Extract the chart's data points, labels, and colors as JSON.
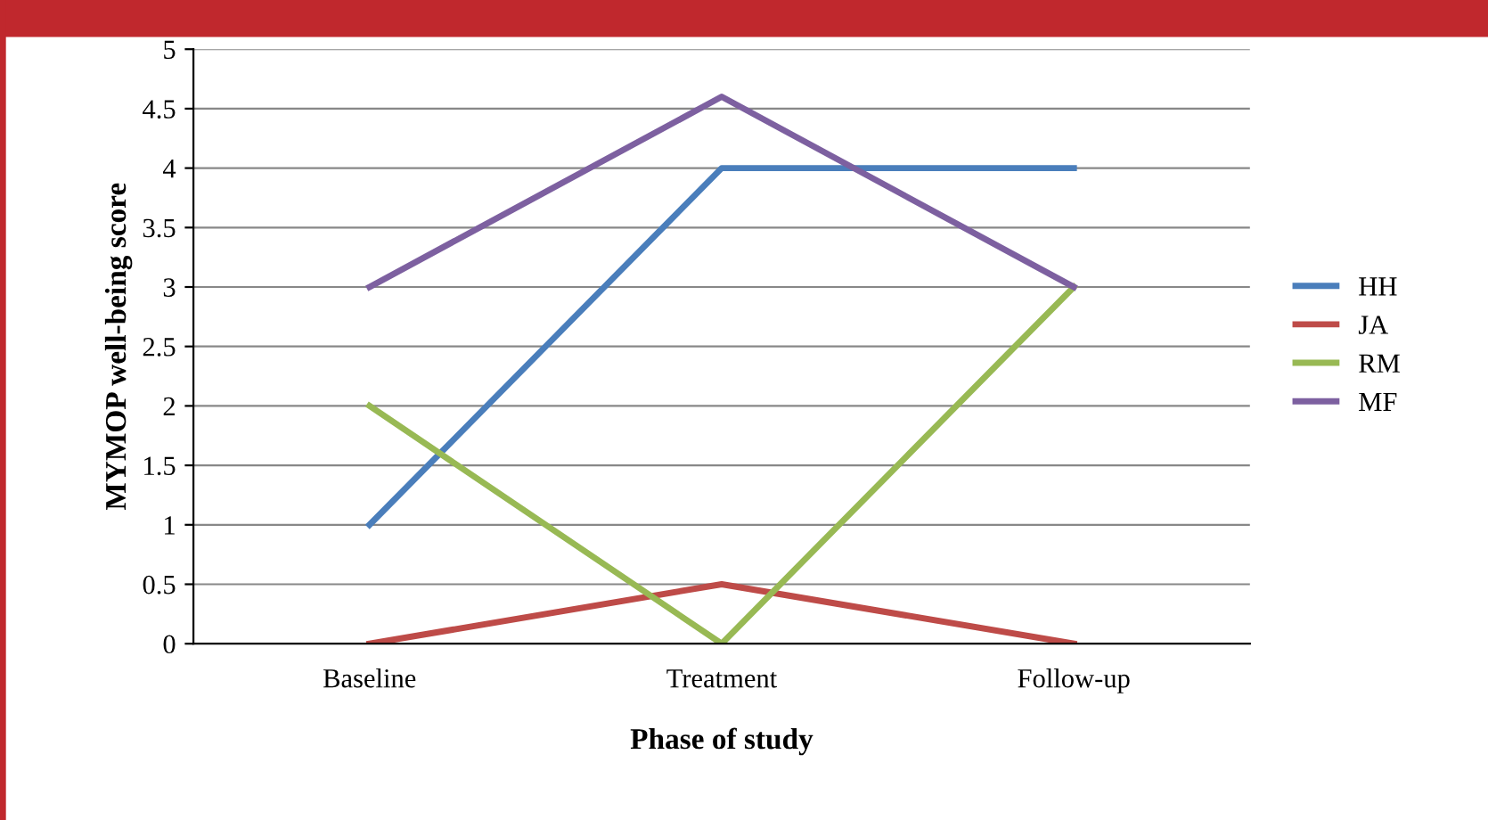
{
  "chart_data": {
    "type": "line",
    "xlabel": "Phase of study",
    "ylabel": "MYMOP well-being score",
    "categories": [
      "Baseline",
      "Treatment",
      "Follow-up"
    ],
    "series": [
      {
        "name": "HH",
        "color": "#4a7ebb",
        "values": [
          1,
          4,
          4
        ]
      },
      {
        "name": "JA",
        "color": "#be4b48",
        "values": [
          0,
          0.5,
          0
        ]
      },
      {
        "name": "RM",
        "color": "#98b954",
        "values": [
          2,
          0,
          3
        ]
      },
      {
        "name": "MF",
        "color": "#7d60a0",
        "values": [
          3,
          4.6,
          3
        ]
      }
    ],
    "ylim": [
      0,
      5
    ],
    "yticks": [
      0,
      0.5,
      1,
      1.5,
      2,
      2.5,
      3,
      3.5,
      4,
      4.5,
      5
    ],
    "grid": "y",
    "legend": "right",
    "marker": "none"
  }
}
